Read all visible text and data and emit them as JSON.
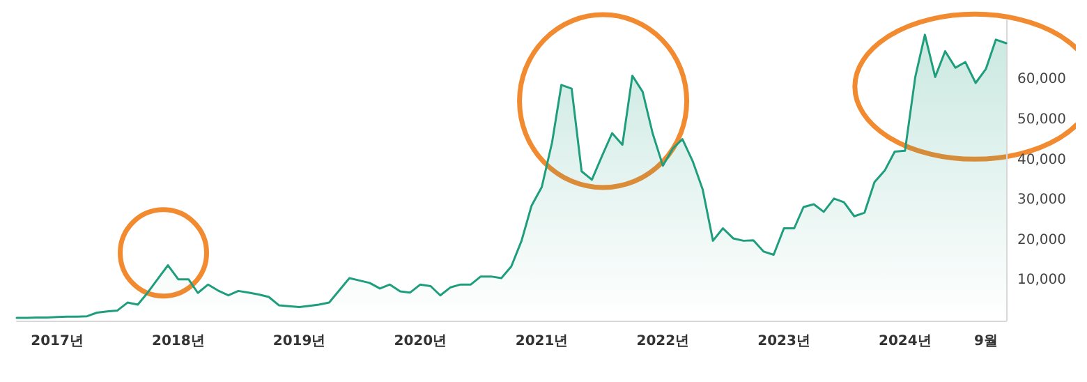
{
  "chart_data": {
    "type": "area",
    "x": [
      "2016-09",
      "2016-10",
      "2016-11",
      "2016-12",
      "2017-01",
      "2017-02",
      "2017-03",
      "2017-04",
      "2017-05",
      "2017-06",
      "2017-07",
      "2017-08",
      "2017-09",
      "2017-10",
      "2017-11",
      "2017-12",
      "2018-01",
      "2018-02",
      "2018-03",
      "2018-04",
      "2018-05",
      "2018-06",
      "2018-07",
      "2018-08",
      "2018-09",
      "2018-10",
      "2018-11",
      "2018-12",
      "2019-01",
      "2019-02",
      "2019-03",
      "2019-04",
      "2019-05",
      "2019-06",
      "2019-07",
      "2019-08",
      "2019-09",
      "2019-10",
      "2019-11",
      "2019-12",
      "2020-01",
      "2020-02",
      "2020-03",
      "2020-04",
      "2020-05",
      "2020-06",
      "2020-07",
      "2020-08",
      "2020-09",
      "2020-10",
      "2020-11",
      "2020-12",
      "2021-01",
      "2021-02",
      "2021-03",
      "2021-04",
      "2021-05",
      "2021-06",
      "2021-07",
      "2021-08",
      "2021-09",
      "2021-10",
      "2021-11",
      "2021-12",
      "2022-01",
      "2022-02",
      "2022-03",
      "2022-04",
      "2022-05",
      "2022-06",
      "2022-07",
      "2022-08",
      "2022-09",
      "2022-10",
      "2022-11",
      "2022-12",
      "2023-01",
      "2023-02",
      "2023-03",
      "2023-04",
      "2023-05",
      "2023-06",
      "2023-07",
      "2023-08",
      "2023-09",
      "2023-10",
      "2023-11",
      "2023-12",
      "2024-01",
      "2024-02",
      "2024-03",
      "2024-04",
      "2024-05",
      "2024-06",
      "2024-07",
      "2024-08",
      "2024-09",
      "2024-10",
      "2024-11"
    ],
    "series": [
      {
        "color": "#1f9e7e",
        "values": [
          700,
          700,
          800,
          800,
          900,
          1000,
          1000,
          1100,
          2000,
          2300,
          2500,
          4500,
          4000,
          7000,
          10500,
          13800,
          10300,
          10300,
          6900,
          9000,
          7500,
          6300,
          7400,
          7000,
          6500,
          5900,
          3800,
          3600,
          3400,
          3700,
          4000,
          4500,
          7500,
          10600,
          10000,
          9400,
          8000,
          9000,
          7300,
          7000,
          9000,
          8600,
          6300,
          8300,
          9000,
          9000,
          11000,
          11000,
          10600,
          13500,
          19900,
          28600,
          33300,
          44400,
          58700,
          57800,
          37200,
          35100,
          40900,
          46700,
          43800,
          61000,
          57000,
          46700,
          38600,
          43000,
          45200,
          39700,
          32700,
          19900,
          23000,
          20500,
          19900,
          20000,
          17200,
          16400,
          23000,
          23000,
          28300,
          29000,
          27100,
          30400,
          29500,
          26000,
          26900,
          34500,
          37400,
          42100,
          42300,
          60700,
          71200,
          60700,
          67100,
          63000,
          64400,
          59200,
          62700,
          70000,
          69100
        ]
      }
    ],
    "xlim": [
      "2016-09",
      "2024-11"
    ],
    "xticks": [
      {
        "value": "2017-01",
        "label": "2017년"
      },
      {
        "value": "2018-01",
        "label": "2018년"
      },
      {
        "value": "2019-01",
        "label": "2019년"
      },
      {
        "value": "2020-01",
        "label": "2020년"
      },
      {
        "value": "2021-01",
        "label": "2021년"
      },
      {
        "value": "2022-01",
        "label": "2022년"
      },
      {
        "value": "2023-01",
        "label": "2023년"
      },
      {
        "value": "2024-01",
        "label": "2024년"
      },
      {
        "value": "2024-09",
        "label": "9월"
      }
    ],
    "ylim": [
      0,
      75000
    ],
    "yticks": [
      {
        "value": 10000,
        "label": "10,000"
      },
      {
        "value": 20000,
        "label": "20,000"
      },
      {
        "value": 30000,
        "label": "30,000"
      },
      {
        "value": 40000,
        "label": "40,000"
      },
      {
        "value": 50000,
        "label": "50,000"
      },
      {
        "value": 60000,
        "label": "60,000"
      }
    ],
    "grid": false,
    "marker": "none",
    "line_style": "solid"
  }
}
